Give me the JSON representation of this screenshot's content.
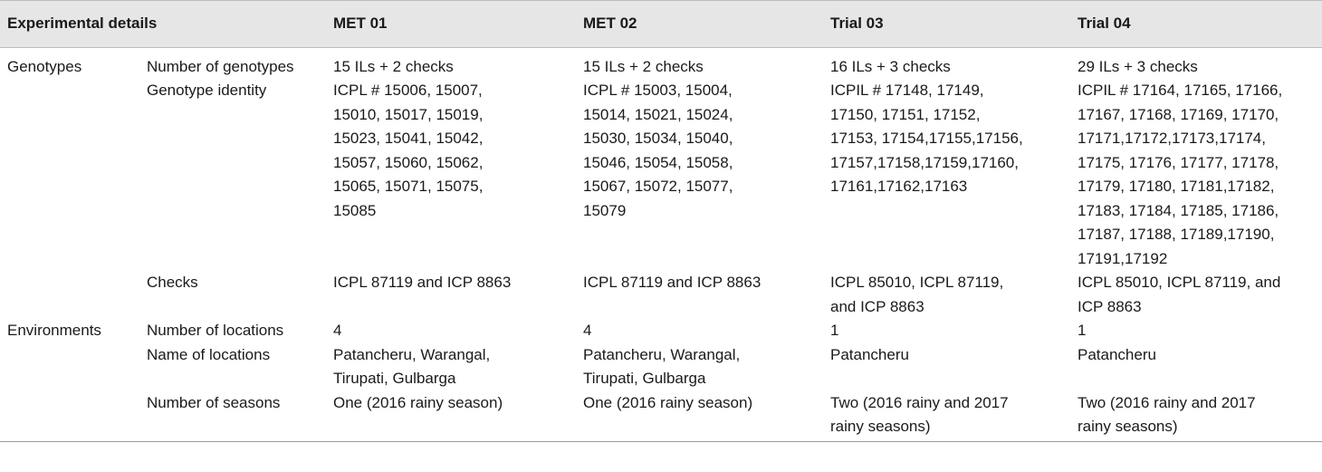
{
  "header": {
    "experimental_details": "Experimental details",
    "met01": "MET 01",
    "met02": "MET 02",
    "trial03": "Trial 03",
    "trial04": "Trial 04"
  },
  "rows": {
    "num_genotypes": {
      "group": "Genotypes",
      "label": "Number of genotypes",
      "met01": "15 ILs + 2 checks",
      "met02": "15 ILs + 2 checks",
      "trial03": "16 ILs + 3 checks",
      "trial04": "29 ILs + 3 checks"
    },
    "genotype_identity": {
      "label": "Genotype identity",
      "met01": "ICPL # 15006, 15007,\n15010, 15017, 15019,\n15023, 15041, 15042,\n15057, 15060, 15062,\n15065, 15071, 15075,\n15085",
      "met02": "ICPL # 15003, 15004,\n15014, 15021, 15024,\n15030, 15034, 15040,\n15046, 15054, 15058,\n15067, 15072, 15077,\n15079",
      "trial03": "ICPIL # 17148, 17149,\n17150, 17151, 17152,\n17153, 17154,17155,17156,\n17157,17158,17159,17160,\n17161,17162,17163",
      "trial04": "ICPIL #  17164, 17165, 17166,\n17167, 17168, 17169, 17170,\n17171,17172,17173,17174,\n17175, 17176, 17177, 17178,\n17179, 17180, 17181,17182,\n17183, 17184, 17185, 17186,\n17187, 17188, 17189,17190,\n17191,17192"
    },
    "checks": {
      "label": "Checks",
      "met01": "ICPL 87119 and ICP 8863",
      "met02": "ICPL 87119 and ICP 8863",
      "trial03": "ICPL 85010, ICPL 87119,\nand ICP 8863",
      "trial04": "ICPL 85010, ICPL 87119, and\nICP 8863"
    },
    "num_locations": {
      "group": "Environments",
      "label": "Number of locations",
      "met01": "4",
      "met02": "4",
      "trial03": "1",
      "trial04": "1"
    },
    "name_locations": {
      "label": "Name of locations",
      "met01": "Patancheru, Warangal,\nTirupati, Gulbarga",
      "met02": "Patancheru, Warangal,\nTirupati, Gulbarga",
      "trial03": "Patancheru",
      "trial04": "Patancheru"
    },
    "num_seasons": {
      "label": "Number of seasons",
      "met01": "One (2016 rainy season)",
      "met02": "One (2016 rainy season)",
      "trial03": "Two (2016 rainy and 2017\nrainy seasons)",
      "trial04": "Two (2016 rainy and 2017\nrainy seasons)"
    }
  }
}
